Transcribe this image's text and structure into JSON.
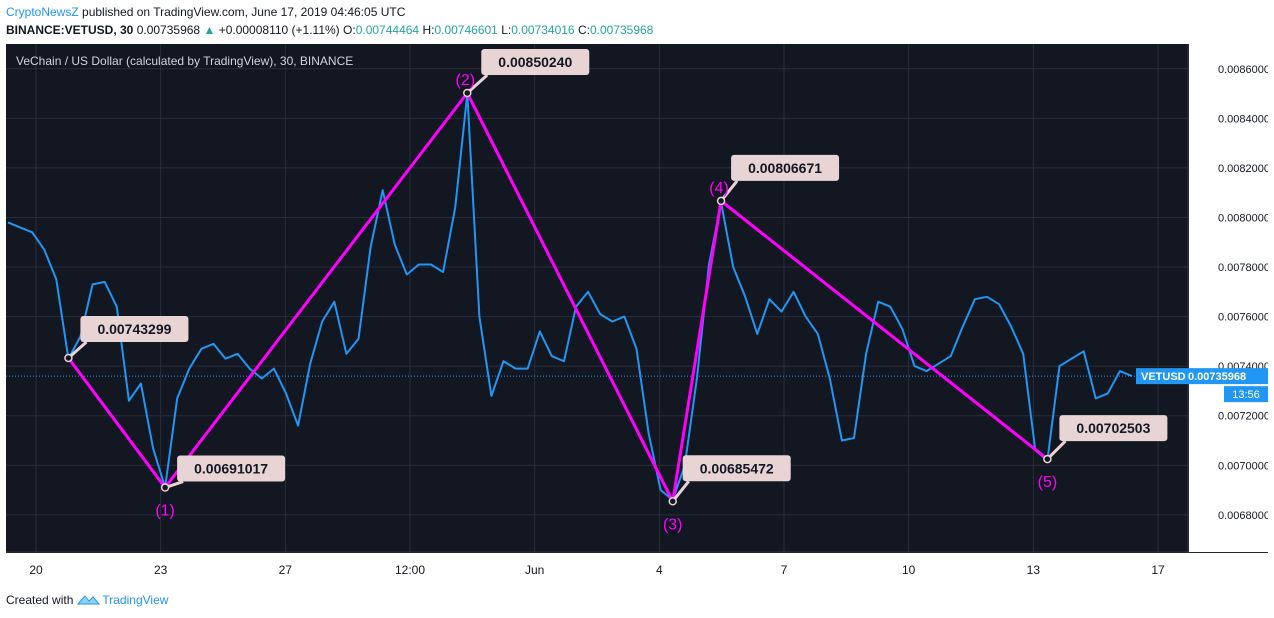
{
  "header": {
    "publisher": "CryptoNewsZ",
    "published_text": "published on TradingView.com, June 17, 2019 04:46:05 UTC",
    "symbol": "BINANCE:VETUSD, 30",
    "last": "0.00735968",
    "change": "+0.00008110 (+1.11%)",
    "open_label": "O:",
    "open": "0.00744464",
    "high_label": "H:",
    "high": "0.00746601",
    "low_label": "L:",
    "low": "0.00734016",
    "close_label": "C:",
    "close": "0.00735968"
  },
  "footer": {
    "created_with": "Created with",
    "brand": "TradingView"
  },
  "chart_data": {
    "type": "line",
    "title": "VeChain / US Dollar (calculated by TradingView), 30, BINANCE",
    "price_range": [
      0.00665,
      0.0087
    ],
    "y_ticks": [
      "0.00680000",
      "0.00700000",
      "0.00720000",
      "0.00740000",
      "0.00760000",
      "0.00780000",
      "0.00800000",
      "0.00820000",
      "0.00840000",
      "0.00860000"
    ],
    "x_ticks": [
      "20",
      "23",
      "27",
      "12:00",
      "Jun",
      "4",
      "7",
      "10",
      "13",
      "17"
    ],
    "symbol_label": "VETUSD",
    "last_price": "0.00735968",
    "last_value": 0.00735968,
    "countdown": "13:56",
    "colors": {
      "background": "#131722",
      "grid": "#2a2e39",
      "price_line": "#2196f3",
      "pattern_line": "#ff00ff",
      "callout_bg": "#e8d3d5"
    },
    "pivots": [
      {
        "label": "",
        "value": 0.00743299,
        "text": "0.00743299"
      },
      {
        "label": "(1)",
        "value": 0.00691017,
        "text": "0.00691017"
      },
      {
        "label": "(2)",
        "value": 0.0085024,
        "text": "0.00850240"
      },
      {
        "label": "(3)",
        "value": 0.00685472,
        "text": "0.00685472"
      },
      {
        "label": "(4)",
        "value": 0.00806671,
        "text": "0.00806671"
      },
      {
        "label": "(5)",
        "value": 0.00702503,
        "text": "0.00702503"
      }
    ],
    "series": [
      {
        "values": [
          0.00798,
          0.00796,
          0.00794,
          0.00787,
          0.00775,
          0.00743,
          0.00752,
          0.00773,
          0.00774,
          0.00764,
          0.00726,
          0.00733,
          0.00707,
          0.00691,
          0.00727,
          0.00739,
          0.00747,
          0.00749,
          0.00743,
          0.00745,
          0.00739,
          0.00735,
          0.00739,
          0.00729,
          0.00716,
          0.00741,
          0.00758,
          0.00766,
          0.00745,
          0.00751,
          0.00788,
          0.00811,
          0.00789,
          0.00777,
          0.00781,
          0.00781,
          0.00778,
          0.00804,
          0.0085,
          0.0076,
          0.00728,
          0.00742,
          0.00739,
          0.00739,
          0.00754,
          0.00744,
          0.00742,
          0.00764,
          0.0077,
          0.00761,
          0.00758,
          0.0076,
          0.00747,
          0.00713,
          0.0069,
          0.00686,
          0.007,
          0.00735,
          0.00781,
          0.00806,
          0.0078,
          0.00768,
          0.00753,
          0.00767,
          0.00762,
          0.0077,
          0.0076,
          0.00753,
          0.00735,
          0.0071,
          0.00711,
          0.00745,
          0.00766,
          0.00764,
          0.00755,
          0.0074,
          0.00738,
          0.00741,
          0.00744,
          0.00756,
          0.00767,
          0.00768,
          0.00765,
          0.00756,
          0.00745,
          0.00706,
          0.00702,
          0.0074,
          0.00743,
          0.00746,
          0.00727,
          0.00729,
          0.00738,
          0.00736
        ]
      }
    ]
  }
}
